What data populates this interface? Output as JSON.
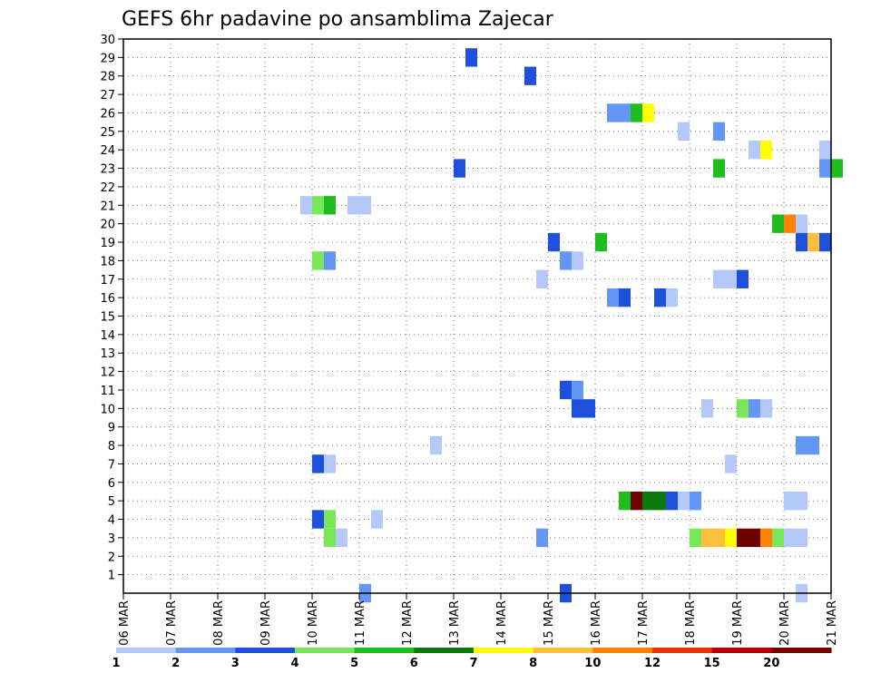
{
  "chart_data": {
    "type": "heatmap",
    "title": "GEFS 6hr padavine po ansamblima Zajecar",
    "xlabel": "",
    "ylabel": "",
    "x_tick_labels": [
      "06 MAR",
      "07 MAR",
      "08 MAR",
      "09 MAR",
      "10 MAR",
      "11 MAR",
      "12 MAR",
      "13 MAR",
      "14 MAR",
      "15 MAR",
      "16 MAR",
      "17 MAR",
      "18 MAR",
      "19 MAR",
      "20 MAR",
      "21 MAR"
    ],
    "y_tick_labels": [
      "1",
      "2",
      "3",
      "4",
      "5",
      "6",
      "7",
      "8",
      "9",
      "10",
      "11",
      "12",
      "13",
      "14",
      "15",
      "16",
      "17",
      "18",
      "19",
      "20",
      "21",
      "22",
      "23",
      "24",
      "25",
      "26",
      "27",
      "28",
      "29",
      "30"
    ],
    "x_range_days": [
      0,
      15
    ],
    "y_range": [
      0,
      30
    ],
    "grid": true,
    "time_step_hours": 6,
    "legend": {
      "placement": "bottom",
      "labels": [
        "1",
        "2",
        "3",
        "4",
        "5",
        "6",
        "7",
        "8",
        "10",
        "12",
        "15",
        "20"
      ],
      "colors": [
        "#b4c8fa",
        "#6496f5",
        "#1e50dc",
        "#7ae65a",
        "#1ebe1e",
        "#0a780a",
        "#ffff00",
        "#ffbe3c",
        "#ff8200",
        "#e63200",
        "#b40000",
        "#6e0000"
      ]
    },
    "cells": [
      {
        "t": 7.25,
        "y": 29,
        "c": 2
      },
      {
        "t": 8.5,
        "y": 28,
        "c": 2
      },
      {
        "t": 10.25,
        "y": 26,
        "c": 1
      },
      {
        "t": 10.5,
        "y": 26,
        "c": 1
      },
      {
        "t": 10.75,
        "y": 26,
        "c": 4
      },
      {
        "t": 11.0,
        "y": 26,
        "c": 6
      },
      {
        "t": 11.75,
        "y": 25,
        "c": 0
      },
      {
        "t": 12.5,
        "y": 25,
        "c": 1
      },
      {
        "t": 13.25,
        "y": 24,
        "c": 0
      },
      {
        "t": 13.5,
        "y": 24,
        "c": 6
      },
      {
        "t": 14.75,
        "y": 24,
        "c": 0
      },
      {
        "t": 7.0,
        "y": 23,
        "c": 2
      },
      {
        "t": 12.5,
        "y": 23,
        "c": 4
      },
      {
        "t": 14.75,
        "y": 23,
        "c": 1
      },
      {
        "t": 15.0,
        "y": 23,
        "c": 4
      },
      {
        "t": 3.75,
        "y": 21,
        "c": 0
      },
      {
        "t": 4.0,
        "y": 21,
        "c": 3
      },
      {
        "t": 4.25,
        "y": 21,
        "c": 4
      },
      {
        "t": 4.75,
        "y": 21,
        "c": 0
      },
      {
        "t": 5.0,
        "y": 21,
        "c": 0
      },
      {
        "t": 13.75,
        "y": 20,
        "c": 4
      },
      {
        "t": 14.0,
        "y": 20,
        "c": 8
      },
      {
        "t": 14.25,
        "y": 20,
        "c": 0
      },
      {
        "t": 9.0,
        "y": 19,
        "c": 2
      },
      {
        "t": 10.0,
        "y": 19,
        "c": 4
      },
      {
        "t": 14.25,
        "y": 19,
        "c": 2
      },
      {
        "t": 14.5,
        "y": 19,
        "c": 7
      },
      {
        "t": 14.75,
        "y": 19,
        "c": 2
      },
      {
        "t": 4.0,
        "y": 18,
        "c": 3
      },
      {
        "t": 4.25,
        "y": 18,
        "c": 1
      },
      {
        "t": 9.25,
        "y": 18,
        "c": 1
      },
      {
        "t": 9.5,
        "y": 18,
        "c": 0
      },
      {
        "t": 8.75,
        "y": 17,
        "c": 0
      },
      {
        "t": 12.5,
        "y": 17,
        "c": 0
      },
      {
        "t": 12.75,
        "y": 17,
        "c": 0
      },
      {
        "t": 13.0,
        "y": 17,
        "c": 2
      },
      {
        "t": 10.25,
        "y": 16,
        "c": 1
      },
      {
        "t": 10.5,
        "y": 16,
        "c": 2
      },
      {
        "t": 11.25,
        "y": 16,
        "c": 2
      },
      {
        "t": 11.5,
        "y": 16,
        "c": 0
      },
      {
        "t": 9.25,
        "y": 11,
        "c": 2
      },
      {
        "t": 9.5,
        "y": 11,
        "c": 1
      },
      {
        "t": 9.5,
        "y": 10,
        "c": 2
      },
      {
        "t": 9.75,
        "y": 10,
        "c": 2
      },
      {
        "t": 12.25,
        "y": 10,
        "c": 0
      },
      {
        "t": 13.0,
        "y": 10,
        "c": 3
      },
      {
        "t": 13.25,
        "y": 10,
        "c": 1
      },
      {
        "t": 13.5,
        "y": 10,
        "c": 0
      },
      {
        "t": 6.5,
        "y": 8,
        "c": 0
      },
      {
        "t": 14.25,
        "y": 8,
        "c": 1
      },
      {
        "t": 14.5,
        "y": 8,
        "c": 1
      },
      {
        "t": 4.0,
        "y": 7,
        "c": 2
      },
      {
        "t": 4.25,
        "y": 7,
        "c": 0
      },
      {
        "t": 12.75,
        "y": 7,
        "c": 0
      },
      {
        "t": 10.5,
        "y": 5,
        "c": 4
      },
      {
        "t": 10.75,
        "y": 5,
        "c": 11
      },
      {
        "t": 11.0,
        "y": 5,
        "c": 5
      },
      {
        "t": 11.25,
        "y": 5,
        "c": 5
      },
      {
        "t": 11.5,
        "y": 5,
        "c": 2
      },
      {
        "t": 11.75,
        "y": 5,
        "c": 0
      },
      {
        "t": 12.0,
        "y": 5,
        "c": 1
      },
      {
        "t": 14.0,
        "y": 5,
        "c": 0
      },
      {
        "t": 14.25,
        "y": 5,
        "c": 0
      },
      {
        "t": 4.0,
        "y": 4,
        "c": 2
      },
      {
        "t": 4.25,
        "y": 4,
        "c": 3
      },
      {
        "t": 5.25,
        "y": 4,
        "c": 0
      },
      {
        "t": 4.25,
        "y": 3,
        "c": 3
      },
      {
        "t": 4.5,
        "y": 3,
        "c": 0
      },
      {
        "t": 8.75,
        "y": 3,
        "c": 1
      },
      {
        "t": 12.0,
        "y": 3,
        "c": 3
      },
      {
        "t": 12.25,
        "y": 3,
        "c": 7
      },
      {
        "t": 12.5,
        "y": 3,
        "c": 7
      },
      {
        "t": 12.75,
        "y": 3,
        "c": 6
      },
      {
        "t": 13.0,
        "y": 3,
        "c": 11
      },
      {
        "t": 13.25,
        "y": 3,
        "c": 11
      },
      {
        "t": 13.5,
        "y": 3,
        "c": 8
      },
      {
        "t": 13.75,
        "y": 3,
        "c": 3
      },
      {
        "t": 14.0,
        "y": 3,
        "c": 0
      },
      {
        "t": 14.25,
        "y": 3,
        "c": 0
      },
      {
        "t": 5.0,
        "y": 0,
        "c": 1
      },
      {
        "t": 9.25,
        "y": 0,
        "c": 2
      },
      {
        "t": 14.25,
        "y": 0,
        "c": 0
      }
    ]
  }
}
